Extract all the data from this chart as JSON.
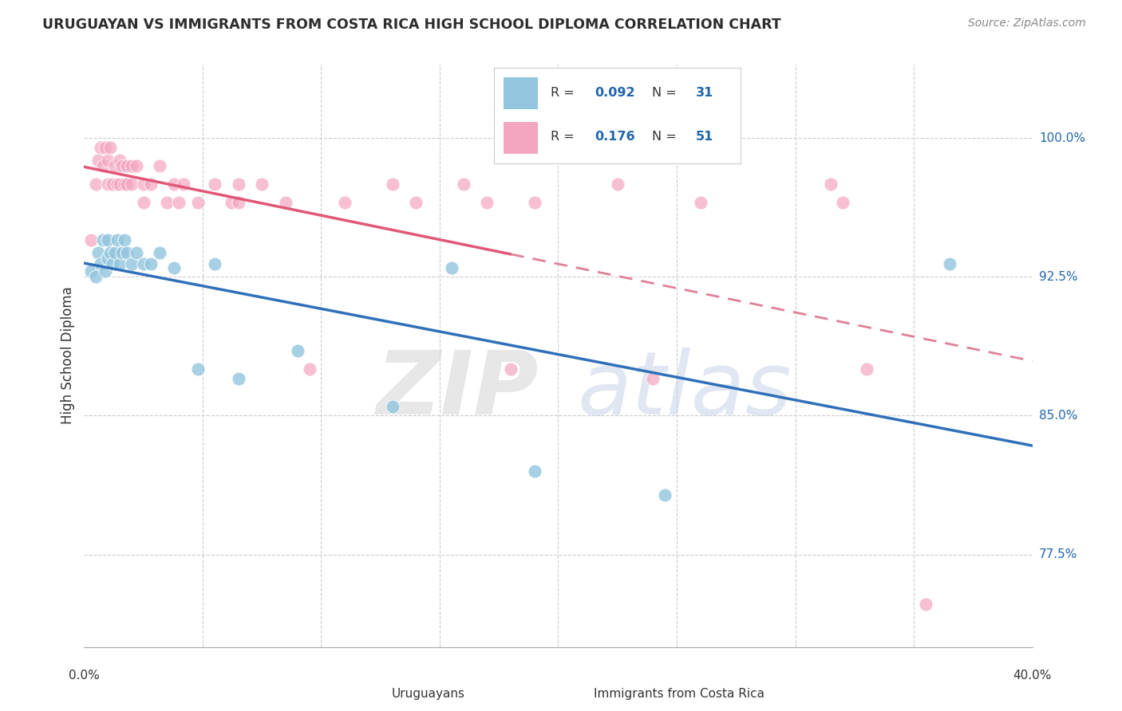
{
  "title": "URUGUAYAN VS IMMIGRANTS FROM COSTA RICA HIGH SCHOOL DIPLOMA CORRELATION CHART",
  "source": "Source: ZipAtlas.com",
  "ylabel": "High School Diploma",
  "ytick_labels": [
    "77.5%",
    "85.0%",
    "92.5%",
    "100.0%"
  ],
  "ytick_values": [
    0.775,
    0.85,
    0.925,
    1.0
  ],
  "xmin": 0.0,
  "xmax": 0.4,
  "ymin": 0.725,
  "ymax": 1.04,
  "blue_scatter_color": "#92c5de",
  "pink_scatter_color": "#f4a6c0",
  "blue_line_color": "#3070b8",
  "pink_line_color": "#e05878",
  "pink_dash_color": "#e08098",
  "legend_val_color": "#2166ac",
  "legend_r_blue": "0.092",
  "legend_n_blue": "31",
  "legend_r_pink": "0.176",
  "legend_n_pink": "51",
  "grid_color": "#cccccc",
  "blue_x": [
    0.003,
    0.005,
    0.006,
    0.007,
    0.008,
    0.009,
    0.01,
    0.01,
    0.011,
    0.012,
    0.013,
    0.014,
    0.015,
    0.016,
    0.017,
    0.018,
    0.02,
    0.022,
    0.025,
    0.028,
    0.032,
    0.038,
    0.048,
    0.055,
    0.065,
    0.09,
    0.13,
    0.155,
    0.19,
    0.245,
    0.365
  ],
  "blue_y": [
    0.928,
    0.925,
    0.938,
    0.932,
    0.945,
    0.928,
    0.935,
    0.945,
    0.938,
    0.932,
    0.938,
    0.945,
    0.932,
    0.938,
    0.945,
    0.938,
    0.932,
    0.938,
    0.932,
    0.932,
    0.938,
    0.93,
    0.875,
    0.932,
    0.87,
    0.885,
    0.855,
    0.93,
    0.82,
    0.807,
    0.932
  ],
  "pink_x": [
    0.003,
    0.005,
    0.006,
    0.007,
    0.008,
    0.009,
    0.01,
    0.01,
    0.011,
    0.012,
    0.013,
    0.014,
    0.015,
    0.015,
    0.016,
    0.017,
    0.018,
    0.018,
    0.02,
    0.02,
    0.022,
    0.025,
    0.025,
    0.028,
    0.032,
    0.035,
    0.038,
    0.04,
    0.042,
    0.048,
    0.055,
    0.062,
    0.065,
    0.065,
    0.075,
    0.085,
    0.095,
    0.11,
    0.13,
    0.14,
    0.16,
    0.17,
    0.18,
    0.19,
    0.225,
    0.24,
    0.26,
    0.315,
    0.32,
    0.33,
    0.355
  ],
  "pink_y": [
    0.945,
    0.975,
    0.988,
    0.995,
    0.985,
    0.995,
    0.975,
    0.988,
    0.995,
    0.975,
    0.985,
    0.975,
    0.975,
    0.988,
    0.985,
    0.975,
    0.985,
    0.975,
    0.985,
    0.975,
    0.985,
    0.975,
    0.965,
    0.975,
    0.985,
    0.965,
    0.975,
    0.965,
    0.975,
    0.965,
    0.975,
    0.965,
    0.975,
    0.965,
    0.975,
    0.965,
    0.875,
    0.965,
    0.975,
    0.965,
    0.975,
    0.965,
    0.875,
    0.965,
    0.975,
    0.87,
    0.965,
    0.975,
    0.965,
    0.875,
    0.748
  ]
}
